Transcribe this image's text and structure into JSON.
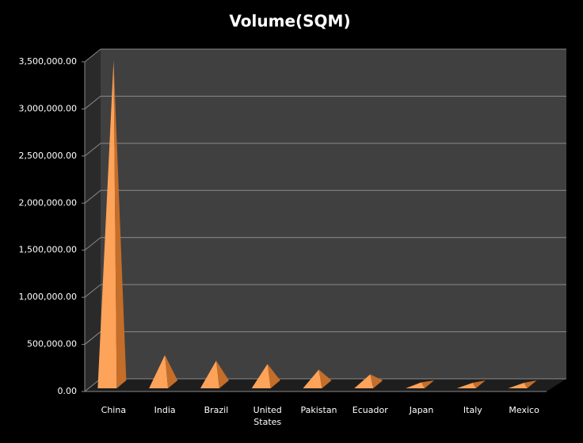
{
  "chart_data": {
    "type": "pyramid3d",
    "title": "Volume(SQM)",
    "categories": [
      "China",
      "India",
      "Brazil",
      "United States",
      "Pakistan",
      "Ecuador",
      "Japan",
      "Italy",
      "Mexico"
    ],
    "values": [
      3450000,
      320000,
      260000,
      225000,
      165000,
      115000,
      30000,
      25000,
      25000
    ],
    "color": "#f79646",
    "ylim": [
      0,
      3500000
    ],
    "yticks": [
      {
        "value": 0,
        "label": "0.00"
      },
      {
        "value": 500000,
        "label": "500,000.00"
      },
      {
        "value": 1000000,
        "label": "1,000,000.00"
      },
      {
        "value": 1500000,
        "label": "1,500,000.00"
      },
      {
        "value": 2000000,
        "label": "2,000,000.00"
      },
      {
        "value": 2500000,
        "label": "2,500,000.00"
      },
      {
        "value": 3000000,
        "label": "3,000,000.00"
      },
      {
        "value": 3500000,
        "label": "3,500,000.00"
      }
    ],
    "grid": true
  }
}
